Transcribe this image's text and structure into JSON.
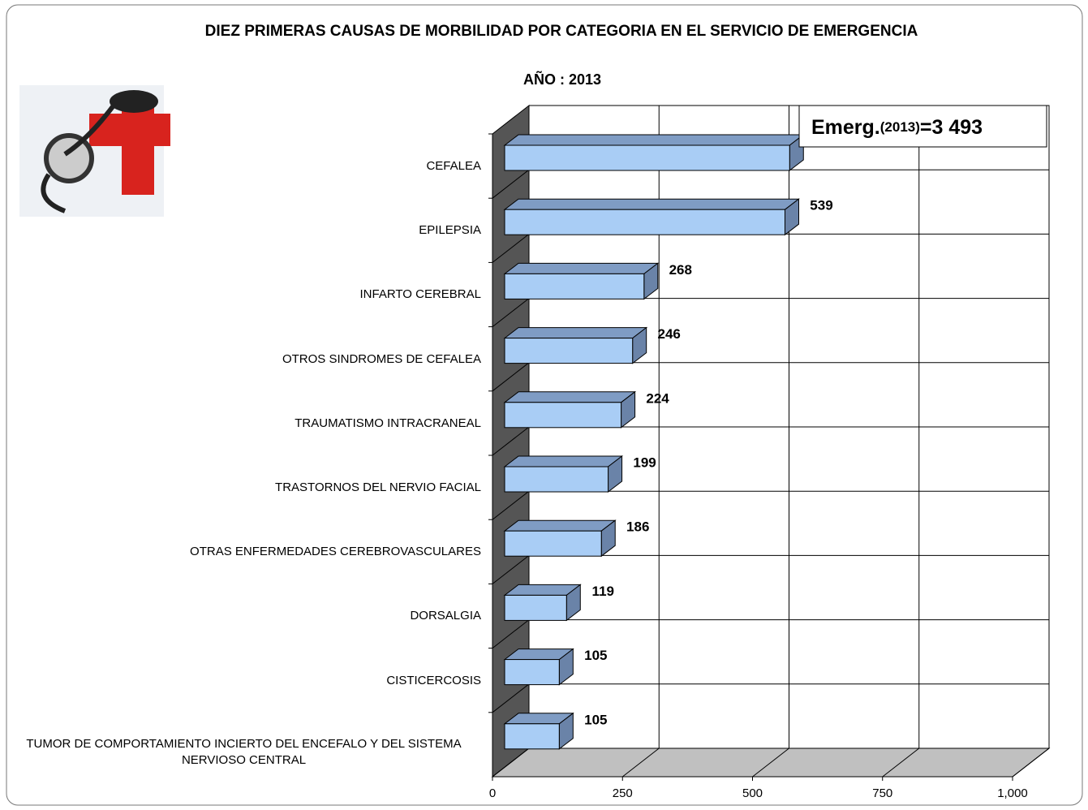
{
  "chart_data": {
    "type": "bar",
    "title": "DIEZ PRIMERAS CAUSAS DE MORBILIDAD POR CATEGORIA EN EL SERVICIO DE EMERGENCIA",
    "subtitle": "AÑO :  2013",
    "annotation": {
      "prefix": "Emerg.",
      "year": "(2013)",
      "total": "=3 493"
    },
    "categories": [
      "CEFALEA",
      "EPILEPSIA",
      "INFARTO CEREBRAL",
      "OTROS SINDROMES DE CEFALEA",
      "TRAUMATISMO INTRACRANEAL",
      "TRASTORNOS DEL NERVIO FACIAL",
      "OTRAS ENFERMEDADES CEREBROVASCULARES",
      "DORSALGIA",
      "CISTICERCOSIS",
      "TUMOR DE COMPORTAMIENTO INCIERTO DEL ENCEFALO Y DEL SISTEMA NERVIOSO CENTRAL"
    ],
    "values": [
      548,
      539,
      268,
      246,
      224,
      199,
      186,
      119,
      105,
      105
    ],
    "color": "#a9cdf5",
    "xlim": [
      0,
      1000
    ],
    "xticks": [
      0,
      250,
      500,
      750,
      {
        "value": 1000,
        "label": "1,000"
      }
    ],
    "grid": true
  }
}
